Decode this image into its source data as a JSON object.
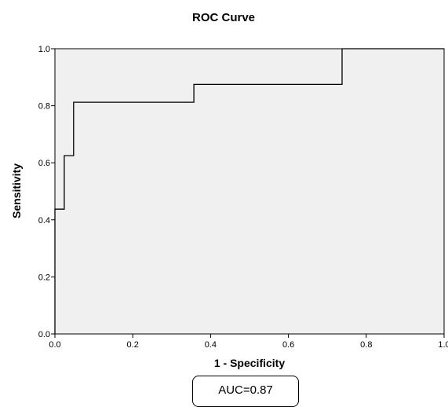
{
  "chart_data": {
    "type": "line",
    "title": "ROC Curve",
    "xlabel": "1 - Specificity",
    "ylabel": "Sensitivity",
    "xlim": [
      0,
      1
    ],
    "ylim": [
      0,
      1
    ],
    "x_ticks": [
      "0.0",
      "0.2",
      "0.4",
      "0.6",
      "0.8",
      "1.0"
    ],
    "y_ticks": [
      "0.0",
      "0.2",
      "0.4",
      "0.6",
      "0.8",
      "1.0"
    ],
    "x_tick_values": [
      0,
      0.2,
      0.4,
      0.6,
      0.8,
      1.0
    ],
    "y_tick_values": [
      0,
      0.2,
      0.4,
      0.6,
      0.8,
      1.0
    ],
    "grid": false,
    "series": [
      {
        "x": [
          0,
          0,
          0.024,
          0.024,
          0.048,
          0.048,
          0.357,
          0.357,
          0.738,
          0.738,
          1.0
        ],
        "y": [
          0,
          0.4375,
          0.4375,
          0.625,
          0.625,
          0.8125,
          0.8125,
          0.875,
          0.875,
          1.0,
          1.0
        ]
      }
    ],
    "annotation": "AUC=0.87",
    "colors": {
      "plot_background": "#f0f0f0",
      "line": "#000000",
      "frame": "#000000"
    }
  }
}
